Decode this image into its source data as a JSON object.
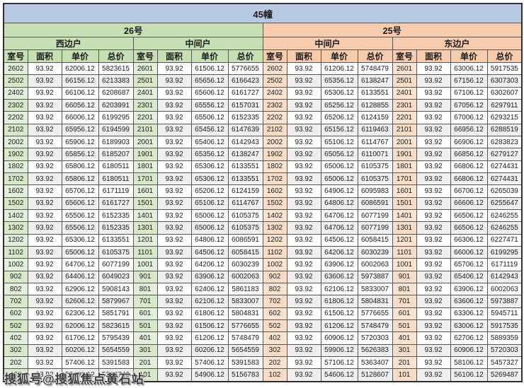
{
  "title": "45幢",
  "watermark": "搜狐号@搜狐焦点黄石站",
  "colors": {
    "title_bg": "#b8c9e4",
    "section_26": "#c6e0b4",
    "section_25": "#f8cbad",
    "room_green": "#e2efda",
    "room_orange": "#fbe3d2",
    "stripe": "#efefef"
  },
  "sections": [
    {
      "label": "26号",
      "subsections": [
        "西边户",
        "中间户"
      ]
    },
    {
      "label": "25号",
      "subsections": [
        "中间户",
        "东边户"
      ]
    }
  ],
  "column_headers": [
    "室号",
    "面积",
    "单价",
    "总价"
  ],
  "rows": [
    [
      "2602",
      "93.92",
      "62006.12",
      "5823615",
      "2601",
      "93.92",
      "61506.12",
      "5776655",
      "2602",
      "93.92",
      "61206.12",
      "5748479",
      "2601",
      "93.92",
      "63006.12",
      "5917535"
    ],
    [
      "2502",
      "93.92",
      "66156.12",
      "6213383",
      "2501",
      "93.92",
      "65656.12",
      "6166423",
      "2502",
      "93.92",
      "65356.12",
      "6138247",
      "2501",
      "93.92",
      "67156.12",
      "6307303"
    ],
    [
      "2402",
      "93.92",
      "66106.12",
      "6208687",
      "2401",
      "93.92",
      "65606.12",
      "6161727",
      "2402",
      "93.92",
      "65306.12",
      "6133551",
      "2401",
      "93.92",
      "67106.12",
      "6302607"
    ],
    [
      "2302",
      "93.92",
      "66056.12",
      "6203991",
      "2301",
      "93.92",
      "65556.12",
      "6157031",
      "2302",
      "93.92",
      "65256.12",
      "6128855",
      "2301",
      "93.92",
      "67056.12",
      "6297911"
    ],
    [
      "2202",
      "93.92",
      "66006.12",
      "6199295",
      "2201",
      "93.92",
      "65506.12",
      "6152335",
      "2202",
      "93.92",
      "65206.12",
      "6124159",
      "2201",
      "93.92",
      "67006.12",
      "6293215"
    ],
    [
      "2102",
      "93.92",
      "65956.12",
      "6194599",
      "2101",
      "93.92",
      "65456.12",
      "6147639",
      "2102",
      "93.92",
      "65156.12",
      "6119463",
      "2101",
      "93.92",
      "66956.12",
      "6288519"
    ],
    [
      "2002",
      "93.92",
      "65906.12",
      "6189903",
      "2001",
      "93.92",
      "65406.12",
      "6142943",
      "2002",
      "93.92",
      "65106.12",
      "6114767",
      "2001",
      "93.92",
      "66906.12",
      "6283823"
    ],
    [
      "1902",
      "93.92",
      "65856.12",
      "6185207",
      "1901",
      "93.92",
      "65356.12",
      "6138247",
      "1902",
      "93.92",
      "65056.12",
      "6110071",
      "1901",
      "93.92",
      "66856.12",
      "6279127"
    ],
    [
      "1802",
      "93.92",
      "65806.12",
      "6180511",
      "1801",
      "93.92",
      "65306.12",
      "6133551",
      "1802",
      "93.92",
      "65006.12",
      "6105375",
      "1801",
      "93.92",
      "66806.12",
      "6274431"
    ],
    [
      "1702",
      "93.92",
      "65806.12",
      "6180511",
      "1701",
      "93.92",
      "65306.12",
      "6133551",
      "1702",
      "93.92",
      "65006.12",
      "6105375",
      "1701",
      "93.92",
      "66806.12",
      "6274431"
    ],
    [
      "1602",
      "93.92",
      "65706.12",
      "6171119",
      "1601",
      "93.92",
      "65206.12",
      "6124159",
      "1602",
      "93.92",
      "64906.12",
      "6095983",
      "1601",
      "93.92",
      "66706.12",
      "6265039"
    ],
    [
      "1502",
      "93.92",
      "65606.12",
      "6161727",
      "1501",
      "93.92",
      "65106.12",
      "6114767",
      "1502",
      "93.92",
      "64806.12",
      "6086591",
      "1501",
      "93.92",
      "66606.12",
      "6255647"
    ],
    [
      "1402",
      "93.92",
      "65506.12",
      "6152335",
      "1401",
      "93.92",
      "65006.12",
      "6105375",
      "1402",
      "93.92",
      "64706.12",
      "6077199",
      "1401",
      "93.92",
      "66506.12",
      "6246255"
    ],
    [
      "1302",
      "93.92",
      "65506.12",
      "6152335",
      "1301",
      "93.92",
      "65006.12",
      "6105375",
      "1302",
      "93.92",
      "64706.12",
      "6077199",
      "1301",
      "93.92",
      "66506.12",
      "6246255"
    ],
    [
      "1202",
      "93.92",
      "65306.12",
      "6133551",
      "1201",
      "93.92",
      "64806.12",
      "6086591",
      "1202",
      "93.92",
      "64506.12",
      "6058415",
      "1201",
      "93.92",
      "66306.12",
      "6227471"
    ],
    [
      "1102",
      "93.92",
      "65006.12",
      "6105375",
      "1101",
      "93.92",
      "64506.12",
      "6058415",
      "1102",
      "93.92",
      "64206.12",
      "6030239",
      "1101",
      "93.92",
      "66006.12",
      "6199295"
    ],
    [
      "1002",
      "93.92",
      "64706.12",
      "6077199",
      "1001",
      "93.92",
      "64206.12",
      "6030239",
      "1002",
      "93.92",
      "63906.12",
      "6002063",
      "1001",
      "93.92",
      "65706.12",
      "6171119"
    ],
    [
      "902",
      "93.92",
      "64406.12",
      "6049023",
      "901",
      "93.92",
      "63906.12",
      "6002063",
      "902",
      "93.92",
      "63606.12",
      "5973887",
      "901",
      "93.92",
      "65406.12",
      "6142943"
    ],
    [
      "802",
      "93.92",
      "62906.12",
      "5908143",
      "801",
      "93.92",
      "62406.12",
      "5861183",
      "802",
      "93.92",
      "62106.12",
      "5833007",
      "801",
      "93.92",
      "63906.12",
      "6002063"
    ],
    [
      "702",
      "93.92",
      "62606.12",
      "5879967",
      "701",
      "93.92",
      "62106.12",
      "5833007",
      "702",
      "93.92",
      "61806.12",
      "5804831",
      "701",
      "93.92",
      "63606.12",
      "5973887"
    ],
    [
      "602",
      "93.92",
      "62306.12",
      "5851791",
      "601",
      "93.92",
      "61806.12",
      "5804831",
      "602",
      "93.92",
      "61506.12",
      "5776655",
      "601",
      "93.92",
      "63306.12",
      "5945711"
    ],
    [
      "502",
      "93.92",
      "62006.12",
      "5823615",
      "501",
      "93.92",
      "61506.12",
      "5776655",
      "502",
      "93.92",
      "61206.12",
      "5748479",
      "501",
      "93.92",
      "63006.12",
      "5917535"
    ],
    [
      "402",
      "93.92",
      "61706.12",
      "5795439",
      "401",
      "93.92",
      "61206.12",
      "5748479",
      "402",
      "93.92",
      "60906.12",
      "5720303",
      "401",
      "93.92",
      "62706.12",
      "5889359"
    ],
    [
      "302",
      "93.92",
      "60206.12",
      "5654559",
      "301",
      "93.92",
      "60206.12",
      "5654559",
      "302",
      "93.92",
      "59906.12",
      "5626383",
      "301",
      "93.92",
      "60906.12",
      "5720303"
    ],
    [
      "202",
      "93.92",
      "57406.12",
      "5391583",
      "201",
      "93.92",
      "57406.12",
      "5391583",
      "202",
      "93.92",
      "57106.12",
      "5363407",
      "201",
      "93.92",
      "58106.12",
      "5457327"
    ],
    [
      "102",
      "93.92",
      "55406.12",
      "5203743",
      "101",
      "93.92",
      "54906.12",
      "5156783",
      "102",
      "93.92",
      "54606.12",
      "5128607",
      "101",
      "93.92",
      "56106.12",
      "5269487"
    ]
  ]
}
